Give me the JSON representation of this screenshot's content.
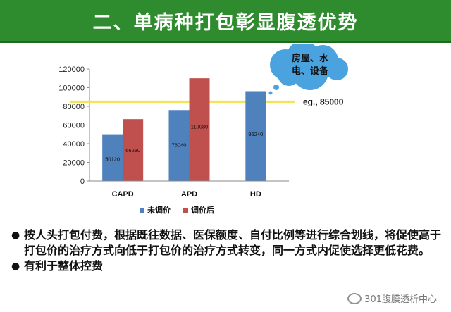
{
  "header": {
    "title": "二、单病种打包彰显腹透优势"
  },
  "chart_data": {
    "type": "bar",
    "categories": [
      "CAPD",
      "APD",
      "HD"
    ],
    "series": [
      {
        "name": "未调价",
        "color": "#4f81bd",
        "values": [
          50120,
          76040,
          96240
        ]
      },
      {
        "name": "调价后",
        "color": "#c0504d",
        "values": [
          66280,
          110080,
          null
        ]
      }
    ],
    "ylim": [
      0,
      120000
    ],
    "yticks": [
      0,
      20000,
      40000,
      60000,
      80000,
      100000,
      120000
    ],
    "reference_line": {
      "value": 85000,
      "label": "eg., 85000",
      "color": "#f5e342"
    },
    "annotation": {
      "text_line1": "房屋、水",
      "text_line2": "电、设备",
      "color": "#4aa3df"
    },
    "legend_position": "bottom"
  },
  "bullets": [
    "按人头打包付费，根据既往数据、医保额度、自付比例等进行综合划线，将促使高于打包价的治疗方式向低于打包价的治疗方式转变，同一方式内促使选择更低花费。",
    "有利于整体控费"
  ],
  "watermark": {
    "text": "301腹膜透析中心",
    "icon": "wechat-icon"
  }
}
